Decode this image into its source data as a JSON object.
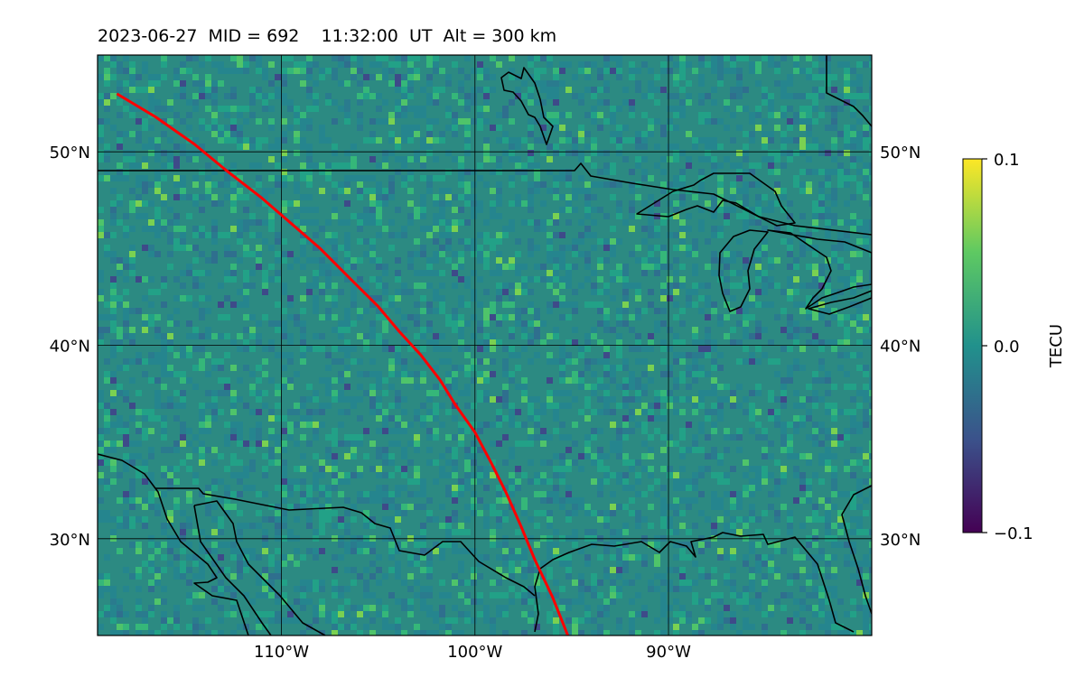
{
  "title": "2023-06-27  MID = 692    11:32:00  UT  Alt = 300 km",
  "map": {
    "lon_range": [
      -119.5,
      -79.5
    ],
    "lat_range": [
      25,
      55
    ],
    "lat_ticks": [
      {
        "value": 50,
        "label": "50°N"
      },
      {
        "value": 40,
        "label": "40°N"
      },
      {
        "value": 30,
        "label": "30°N"
      }
    ],
    "lon_ticks": [
      {
        "value": -110,
        "label": "110°W"
      },
      {
        "value": -100,
        "label": "100°W"
      },
      {
        "value": -90,
        "label": "90°W"
      }
    ],
    "track_color": "#ff0000",
    "coast_color": "#000000",
    "track": [
      [
        -118.5,
        53.0
      ],
      [
        -116.5,
        51.8
      ],
      [
        -114.5,
        50.4
      ],
      [
        -112.8,
        49.0
      ],
      [
        -111.0,
        47.6
      ],
      [
        -109.5,
        46.3
      ],
      [
        -108.0,
        45.0
      ],
      [
        -106.5,
        43.5
      ],
      [
        -105.0,
        42.0
      ],
      [
        -103.9,
        40.7
      ],
      [
        -102.8,
        39.5
      ],
      [
        -101.8,
        38.2
      ],
      [
        -101.0,
        36.9
      ],
      [
        -100.0,
        35.5
      ],
      [
        -99.2,
        34.0
      ],
      [
        -98.4,
        32.4
      ],
      [
        -97.6,
        30.6
      ],
      [
        -96.9,
        28.9
      ],
      [
        -96.0,
        27.0
      ],
      [
        -95.2,
        25.0
      ]
    ]
  },
  "colorbar": {
    "label": "TECU",
    "max_label": "0.1",
    "mid_label": "0.0",
    "min_label": "−0.1",
    "range": [
      -0.1,
      0.1
    ],
    "colormap": "viridis",
    "stops": [
      "#440154",
      "#3b528b",
      "#21918c",
      "#5ec962",
      "#fde725"
    ]
  }
}
